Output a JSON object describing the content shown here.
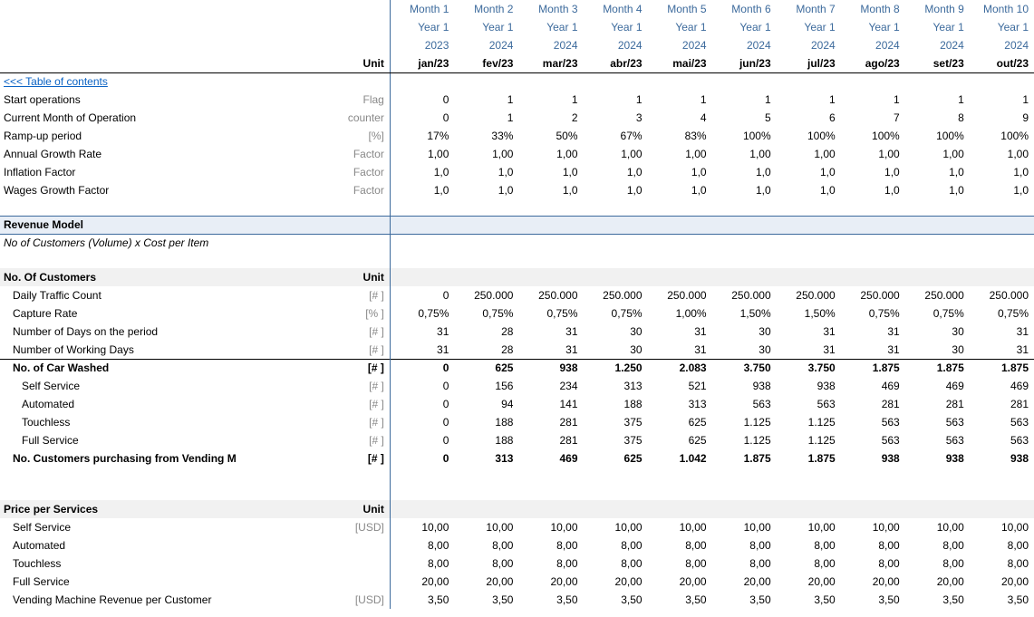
{
  "colors": {
    "header_text": "#3c6a9c",
    "unit_text": "#888888",
    "link": "#0b63c4",
    "section_bg": "#e8eef6",
    "subheader_bg": "#f1f1f1",
    "border": "#000000",
    "background": "#ffffff"
  },
  "typography": {
    "font_family": "Century Gothic",
    "base_size_pt": 9
  },
  "toc_link": "<<< Table of contents",
  "unit_header_label": "Unit",
  "header": {
    "row1": [
      "Month 1",
      "Month 2",
      "Month 3",
      "Month 4",
      "Month 5",
      "Month 6",
      "Month 7",
      "Month 8",
      "Month 9",
      "Month 10"
    ],
    "row2": [
      "Year 1",
      "Year 1",
      "Year 1",
      "Year 1",
      "Year 1",
      "Year 1",
      "Year 1",
      "Year 1",
      "Year 1",
      "Year 1"
    ],
    "row3": [
      "2023",
      "2024",
      "2024",
      "2024",
      "2024",
      "2024",
      "2024",
      "2024",
      "2024",
      "2024"
    ],
    "row4": [
      "jan/23",
      "fev/23",
      "mar/23",
      "abr/23",
      "mai/23",
      "jun/23",
      "jul/23",
      "ago/23",
      "set/23",
      "out/23"
    ]
  },
  "top_rows": [
    {
      "label": "Start operations",
      "unit": "Flag",
      "vals": [
        "0",
        "1",
        "1",
        "1",
        "1",
        "1",
        "1",
        "1",
        "1",
        "1"
      ]
    },
    {
      "label": "Current Month of Operation",
      "unit": "counter",
      "vals": [
        "0",
        "1",
        "2",
        "3",
        "4",
        "5",
        "6",
        "7",
        "8",
        "9"
      ]
    },
    {
      "label": "Ramp-up period",
      "unit": "[%]",
      "vals": [
        "17%",
        "33%",
        "50%",
        "67%",
        "83%",
        "100%",
        "100%",
        "100%",
        "100%",
        "100%"
      ]
    },
    {
      "label": "Annual Growth Rate",
      "unit": "Factor",
      "vals": [
        "1,00",
        "1,00",
        "1,00",
        "1,00",
        "1,00",
        "1,00",
        "1,00",
        "1,00",
        "1,00",
        "1,00"
      ]
    },
    {
      "label": "Inflation Factor",
      "unit": "Factor",
      "vals": [
        "1,0",
        "1,0",
        "1,0",
        "1,0",
        "1,0",
        "1,0",
        "1,0",
        "1,0",
        "1,0",
        "1,0"
      ]
    },
    {
      "label": "Wages Growth Factor",
      "unit": "Factor",
      "vals": [
        "1,0",
        "1,0",
        "1,0",
        "1,0",
        "1,0",
        "1,0",
        "1,0",
        "1,0",
        "1,0",
        "1,0"
      ]
    }
  ],
  "revenue_model_label": "Revenue Model",
  "revenue_model_sub": "No of Customers (Volume) x Cost per Item",
  "no_customers_label": "No. Of Customers",
  "customers_rows": [
    {
      "label": "Daily Traffic Count",
      "unit": "[# ]",
      "indent": 1,
      "vals": [
        "0",
        "250.000",
        "250.000",
        "250.000",
        "250.000",
        "250.000",
        "250.000",
        "250.000",
        "250.000",
        "250.000"
      ]
    },
    {
      "label": "Capture Rate",
      "unit": "[% ]",
      "indent": 1,
      "vals": [
        "0,75%",
        "0,75%",
        "0,75%",
        "0,75%",
        "1,00%",
        "1,50%",
        "1,50%",
        "0,75%",
        "0,75%",
        "0,75%"
      ]
    },
    {
      "label": "Number of Days on the period",
      "unit": "[# ]",
      "indent": 1,
      "vals": [
        "31",
        "28",
        "31",
        "30",
        "31",
        "30",
        "31",
        "31",
        "30",
        "31"
      ]
    },
    {
      "label": "Number of Working Days",
      "unit": "[# ]",
      "indent": 1,
      "vals": [
        "31",
        "28",
        "31",
        "30",
        "31",
        "30",
        "31",
        "31",
        "30",
        "31"
      ]
    }
  ],
  "car_washed": {
    "label": "No. of Car Washed",
    "unit": "[# ]",
    "vals": [
      "0",
      "625",
      "938",
      "1.250",
      "2.083",
      "3.750",
      "3.750",
      "1.875",
      "1.875",
      "1.875"
    ]
  },
  "car_breakdown": [
    {
      "label": "Self Service",
      "unit": "[# ]",
      "vals": [
        "0",
        "156",
        "234",
        "313",
        "521",
        "938",
        "938",
        "469",
        "469",
        "469"
      ]
    },
    {
      "label": "Automated",
      "unit": "[# ]",
      "vals": [
        "0",
        "94",
        "141",
        "188",
        "313",
        "563",
        "563",
        "281",
        "281",
        "281"
      ]
    },
    {
      "label": "Touchless",
      "unit": "[# ]",
      "vals": [
        "0",
        "188",
        "281",
        "375",
        "625",
        "1.125",
        "1.125",
        "563",
        "563",
        "563"
      ]
    },
    {
      "label": "Full Service",
      "unit": "[# ]",
      "vals": [
        "0",
        "188",
        "281",
        "375",
        "625",
        "1.125",
        "1.125",
        "563",
        "563",
        "563"
      ]
    }
  ],
  "vending": {
    "label": "No. Customers purchasing from Vending Machines",
    "unit": "[# ]",
    "vals": [
      "0",
      "313",
      "469",
      "625",
      "1.042",
      "1.875",
      "1.875",
      "938",
      "938",
      "938"
    ]
  },
  "price_label": "Price per  Services",
  "price_rows": [
    {
      "label": "Self Service",
      "unit": "[USD]",
      "indent": 1,
      "vals": [
        "10,00",
        "10,00",
        "10,00",
        "10,00",
        "10,00",
        "10,00",
        "10,00",
        "10,00",
        "10,00",
        "10,00"
      ]
    },
    {
      "label": "Automated",
      "unit": "",
      "indent": 1,
      "vals": [
        "8,00",
        "8,00",
        "8,00",
        "8,00",
        "8,00",
        "8,00",
        "8,00",
        "8,00",
        "8,00",
        "8,00"
      ]
    },
    {
      "label": "Touchless",
      "unit": "",
      "indent": 1,
      "vals": [
        "8,00",
        "8,00",
        "8,00",
        "8,00",
        "8,00",
        "8,00",
        "8,00",
        "8,00",
        "8,00",
        "8,00"
      ]
    },
    {
      "label": "Full Service",
      "unit": "",
      "indent": 1,
      "vals": [
        "20,00",
        "20,00",
        "20,00",
        "20,00",
        "20,00",
        "20,00",
        "20,00",
        "20,00",
        "20,00",
        "20,00"
      ]
    },
    {
      "label": "Vending Machine Revenue per Customer",
      "unit": "[USD]",
      "indent": 1,
      "vals": [
        "3,50",
        "3,50",
        "3,50",
        "3,50",
        "3,50",
        "3,50",
        "3,50",
        "3,50",
        "3,50",
        "3,50"
      ]
    }
  ]
}
